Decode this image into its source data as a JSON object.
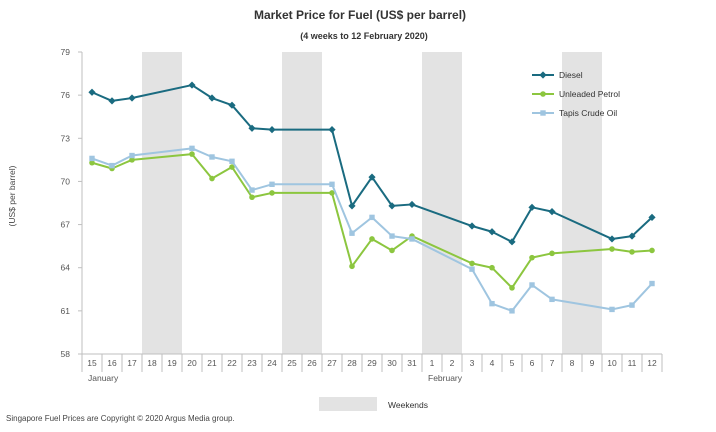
{
  "chart_data": {
    "type": "line",
    "title": "Market Price for Fuel (US$  per barrel)",
    "subtitle": "(4 weeks to 12 February 2020)",
    "ylabel": "(US$ per barrel)",
    "xlabel": "",
    "ylim": [
      58,
      79
    ],
    "yticks": [
      58,
      61,
      64,
      67,
      70,
      73,
      76,
      79
    ],
    "x_labels": [
      "15",
      "16",
      "17",
      "18",
      "19",
      "20",
      "21",
      "22",
      "23",
      "24",
      "25",
      "26",
      "27",
      "28",
      "29",
      "30",
      "31",
      "1",
      "2",
      "3",
      "4",
      "5",
      "6",
      "7",
      "8",
      "9",
      "10",
      "11",
      "12"
    ],
    "month_labels": [
      {
        "label": "January",
        "index": 0
      },
      {
        "label": "February",
        "index": 17
      }
    ],
    "weekend_bands": [
      [
        3,
        4
      ],
      [
        10,
        11
      ],
      [
        17,
        18
      ],
      [
        24,
        25
      ]
    ],
    "weekend_legend_label": "Weekends",
    "legend_position": "top-right",
    "series": [
      {
        "name": "Diesel",
        "color": "#1a6b80",
        "marker": "diamond",
        "values": [
          76.2,
          75.6,
          75.8,
          null,
          null,
          76.7,
          75.8,
          75.3,
          73.7,
          73.6,
          null,
          null,
          73.6,
          68.3,
          70.3,
          68.3,
          68.4,
          null,
          null,
          66.9,
          66.5,
          65.8,
          68.2,
          67.9,
          null,
          null,
          66.0,
          66.2,
          67.5
        ]
      },
      {
        "name": "Unleaded Petrol",
        "color": "#8cc63f",
        "marker": "circle",
        "values": [
          71.3,
          70.9,
          71.5,
          null,
          null,
          71.9,
          70.2,
          71.0,
          68.9,
          69.2,
          null,
          null,
          69.2,
          64.1,
          66.0,
          65.2,
          66.2,
          null,
          null,
          64.3,
          64.0,
          62.6,
          64.7,
          65.0,
          null,
          null,
          65.3,
          65.1,
          65.2
        ]
      },
      {
        "name": "Tapis Crude Oil",
        "color": "#9fc5e0",
        "marker": "square",
        "values": [
          71.6,
          71.1,
          71.8,
          null,
          null,
          72.3,
          71.7,
          71.4,
          69.4,
          69.8,
          null,
          null,
          69.8,
          66.4,
          67.5,
          66.2,
          66.0,
          null,
          null,
          63.9,
          61.5,
          61.0,
          62.8,
          61.8,
          null,
          null,
          61.1,
          61.4,
          62.9
        ]
      }
    ]
  },
  "footer": {
    "copyright": "Singapore  Fuel Prices are Copyright © 2020 Argus Media group."
  }
}
